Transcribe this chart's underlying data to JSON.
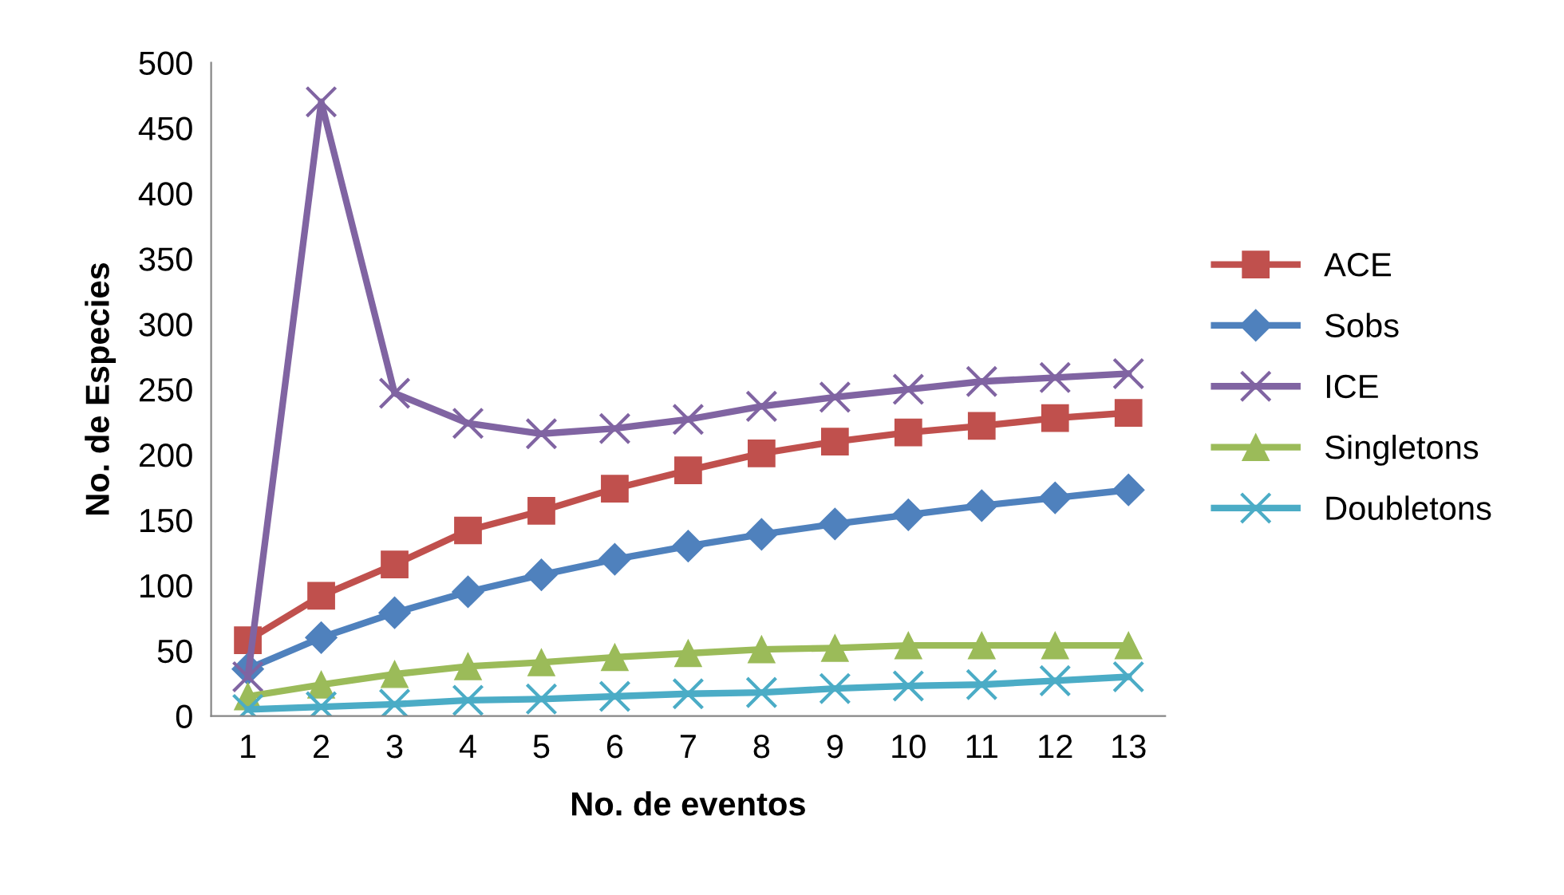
{
  "chart_data": {
    "type": "line",
    "xlabel": "No. de eventos",
    "ylabel": "No. de Especies",
    "categories": [
      "1",
      "2",
      "3",
      "4",
      "5",
      "6",
      "7",
      "8",
      "9",
      "10",
      "11",
      "12",
      "13"
    ],
    "ylim": [
      0,
      500
    ],
    "yticks": [
      0,
      50,
      100,
      150,
      200,
      250,
      300,
      350,
      400,
      450,
      500
    ],
    "grid": false,
    "legend": "right",
    "line_style": "solid",
    "series": [
      {
        "name": "ACE",
        "color": "#c0504d",
        "marker": "square",
        "values": [
          58,
          92,
          116,
          142,
          157,
          174,
          188,
          201,
          210,
          217,
          222,
          228,
          232
        ]
      },
      {
        "name": "Sobs",
        "color": "#4f81bd",
        "marker": "diamond",
        "values": [
          36,
          60,
          79,
          95,
          108,
          120,
          130,
          139,
          147,
          154,
          161,
          167,
          173
        ]
      },
      {
        "name": "ICE",
        "color": "#8064a2",
        "marker": "cross",
        "values": [
          30,
          470,
          247,
          224,
          216,
          220,
          227,
          237,
          244,
          250,
          256,
          259,
          262
        ]
      },
      {
        "name": "Singletons",
        "color": "#9bbb59",
        "marker": "triangle",
        "values": [
          15,
          24,
          32,
          38,
          41,
          45,
          48,
          51,
          52,
          54,
          54,
          54,
          54
        ]
      },
      {
        "name": "Doubletons",
        "color": "#4bacc6",
        "marker": "cross",
        "values": [
          5,
          7,
          9,
          12,
          13,
          15,
          17,
          18,
          21,
          23,
          24,
          27,
          30
        ]
      }
    ]
  }
}
